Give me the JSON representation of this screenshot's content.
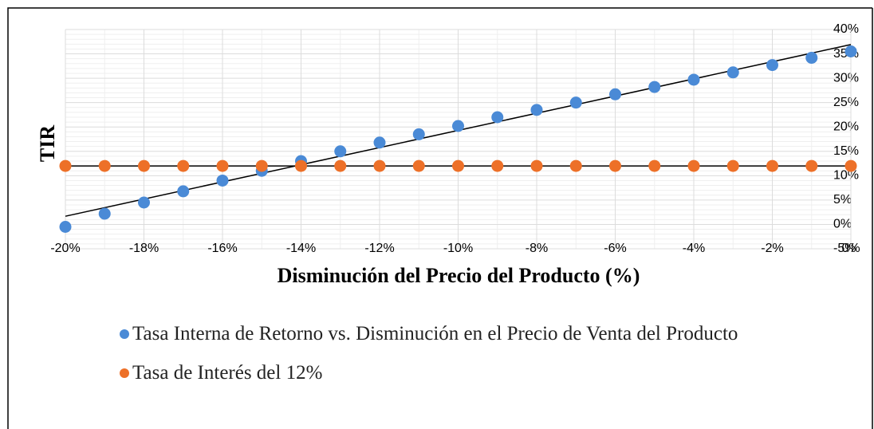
{
  "chart_data": {
    "type": "scatter",
    "x_label": "Disminución del Precio del Producto (%)",
    "y_label": "TIR",
    "x": [
      -20,
      -19,
      -18,
      -17,
      -16,
      -15,
      -14,
      -13,
      -12,
      -11,
      -10,
      -9,
      -8,
      -7,
      -6,
      -5,
      -4,
      -3,
      -2,
      -1,
      0
    ],
    "series": [
      {
        "name": "Tasa Interna de Retorno vs. Disminución en el Precio de Venta del Producto",
        "color": "#4a8ad6",
        "values": [
          -0.5,
          2.2,
          4.5,
          6.8,
          9,
          11,
          13,
          15,
          16.8,
          18.5,
          20.2,
          22,
          23.5,
          25,
          26.7,
          28.2,
          29.7,
          31.2,
          32.7,
          34.2,
          35.5
        ]
      },
      {
        "name": "Tasa de Interés del 12%",
        "color": "#ed7028",
        "values": [
          12,
          12,
          12,
          12,
          12,
          12,
          12,
          12,
          12,
          12,
          12,
          12,
          12,
          12,
          12,
          12,
          12,
          12,
          12,
          12,
          12
        ]
      }
    ],
    "trendline": true,
    "grid": true,
    "xlim": [
      -20,
      0
    ],
    "xticks": [
      {
        "value": -20,
        "label": "-20%"
      },
      {
        "value": -18,
        "label": "-18%"
      },
      {
        "value": -16,
        "label": "-16%"
      },
      {
        "value": -14,
        "label": "-14%"
      },
      {
        "value": -12,
        "label": "-12%"
      },
      {
        "value": -10,
        "label": "-10%"
      },
      {
        "value": -8,
        "label": "-8%"
      },
      {
        "value": -6,
        "label": "-6%"
      },
      {
        "value": -4,
        "label": "-4%"
      },
      {
        "value": -2,
        "label": "-2%"
      },
      {
        "value": 0,
        "label": "0%"
      }
    ],
    "ylim": [
      -5,
      40
    ],
    "yticks": [
      {
        "value": -5,
        "label": "-5%"
      },
      {
        "value": 0,
        "label": "0%"
      },
      {
        "value": 5,
        "label": "5%"
      },
      {
        "value": 10,
        "label": "10%"
      },
      {
        "value": 15,
        "label": "15%"
      },
      {
        "value": 20,
        "label": "20%"
      },
      {
        "value": 25,
        "label": "25%"
      },
      {
        "value": 30,
        "label": "30%"
      },
      {
        "value": 35,
        "label": "35%"
      },
      {
        "value": 40,
        "label": "40%"
      }
    ]
  }
}
